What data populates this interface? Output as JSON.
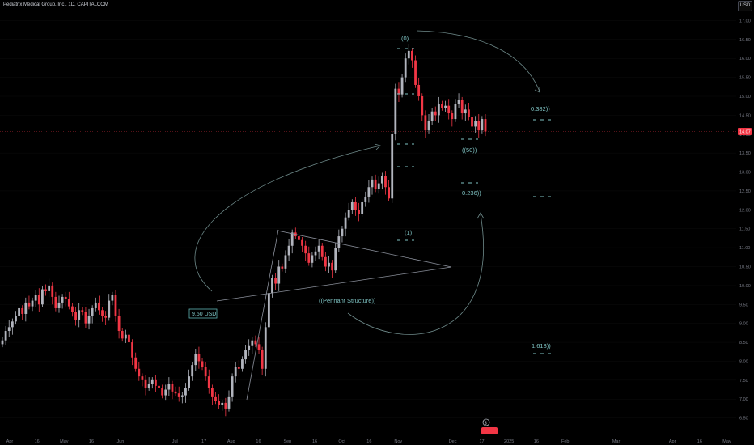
{
  "title": "Pediatrix Medical Group, Inc., 1D, CAPITALCOM",
  "currency": "USD",
  "price_label": "14.07",
  "colors": {
    "up": "#b2b5be",
    "down": "#f23645",
    "annotation": "#5fb3b3",
    "wave_arc": "#7aa8a8",
    "grid": "#0d0d0d",
    "axis_text": "#787b86",
    "price_tag": "#f23645"
  },
  "chart_data": {
    "type": "candlestick",
    "title": "Pediatrix Medical Group, Inc., 1D, CAPITALCOM",
    "ylim": [
      6.0,
      17.33
    ],
    "y_ticks": [
      6.5,
      7.0,
      7.5,
      8.0,
      8.5,
      9.0,
      9.5,
      10.0,
      10.5,
      11.0,
      11.5,
      12.0,
      12.5,
      13.0,
      13.5,
      14.0,
      14.5,
      15.0,
      15.5,
      16.0,
      16.5,
      17.0
    ],
    "y_tick_labels": [
      "6.50",
      "7.00",
      "7.50",
      "8.00",
      "8.50",
      "9.00",
      "9.50",
      "10.00",
      "10.50",
      "11.00",
      "11.50",
      "12.00",
      "12.50",
      "13.00",
      "13.50",
      "14.00",
      "14.50",
      "15.00",
      "15.50",
      "16.00",
      "16.50",
      "17.00"
    ],
    "x_tick_labels": [
      "Apr",
      "16",
      "May",
      "16",
      "Jun",
      "Jul",
      "17",
      "Aug",
      "16",
      "Sep",
      "16",
      "Oct",
      "16",
      "Nov",
      "Dec",
      "17",
      "2025",
      "16",
      "Feb",
      "Mar",
      "Apr",
      "16",
      "May"
    ],
    "last_price": 14.07,
    "date_start": "2024-03-28",
    "date_end": "2024-12-19",
    "closes": [
      8.55,
      8.8,
      8.9,
      9.05,
      9.2,
      9.4,
      9.25,
      9.55,
      9.45,
      9.6,
      9.75,
      9.5,
      9.9,
      9.85,
      10.0,
      9.7,
      9.4,
      9.55,
      9.7,
      9.65,
      9.45,
      9.3,
      9.1,
      9.35,
      9.3,
      9.0,
      9.2,
      9.4,
      9.55,
      9.35,
      9.2,
      9.15,
      9.6,
      9.75,
      9.2,
      8.8,
      8.6,
      8.7,
      8.5,
      8.1,
      7.8,
      7.6,
      7.5,
      7.3,
      7.4,
      7.5,
      7.35,
      7.3,
      7.1,
      7.25,
      7.4,
      7.2,
      7.15,
      7.05,
      7.1,
      7.3,
      7.6,
      7.9,
      8.2,
      8.0,
      7.85,
      7.6,
      7.3,
      7.05,
      6.95,
      6.85,
      6.9,
      6.75,
      7.05,
      7.6,
      7.85,
      7.8,
      8.05,
      8.3,
      8.4,
      8.55,
      8.45,
      8.3,
      7.8,
      8.9,
      9.8,
      10.2,
      10.05,
      10.5,
      10.45,
      10.8,
      11.05,
      11.4,
      11.3,
      11.2,
      11.05,
      10.85,
      10.6,
      10.8,
      10.9,
      11.05,
      10.75,
      10.5,
      10.6,
      10.4,
      11.0,
      11.3,
      11.5,
      11.8,
      12.0,
      12.2,
      12.0,
      11.9,
      12.2,
      12.35,
      12.6,
      12.8,
      12.55,
      12.7,
      12.9,
      12.6,
      12.3,
      14.0,
      15.2,
      15.05,
      15.5,
      16.0,
      16.2,
      15.95,
      15.3,
      15.0,
      14.5,
      14.1,
      14.35,
      14.6,
      14.5,
      14.8,
      14.7,
      14.75,
      14.55,
      14.4,
      14.8,
      14.9,
      14.55,
      14.65,
      14.45,
      14.2,
      14.35,
      14.1,
      14.4,
      14.07
    ]
  },
  "annotations": {
    "wave0": "(0)",
    "wave1": "(1)",
    "fib50": "((50))",
    "fib0236": "0.236))",
    "fib0382": "0.382))",
    "fib1618": "1.618))",
    "pennant": "((Pennant Structure))",
    "price_box": "9.50 USD",
    "event_badge": "$"
  }
}
